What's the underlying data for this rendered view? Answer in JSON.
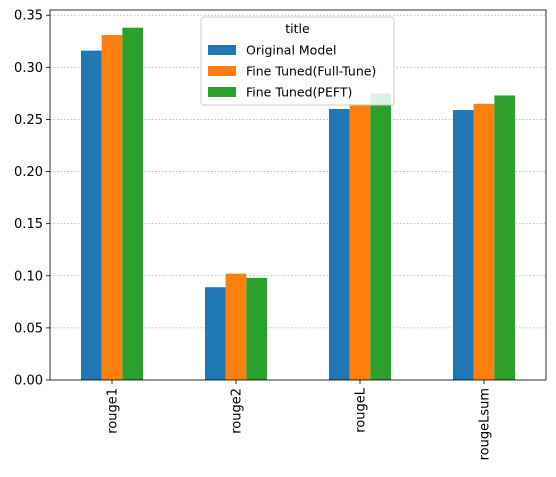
{
  "chart_data": {
    "type": "bar",
    "categories": [
      "rouge1",
      "rouge2",
      "rougeL",
      "rougeLsum"
    ],
    "series": [
      {
        "name": "Original Model",
        "color": "#1f77b4",
        "values": [
          0.316,
          0.089,
          0.26,
          0.259
        ]
      },
      {
        "name": "Fine Tuned(Full-Tune)",
        "color": "#ff7f0e",
        "values": [
          0.331,
          0.102,
          0.265,
          0.265
        ]
      },
      {
        "name": "Fine Tuned(PEFT)",
        "color": "#2ca02c",
        "values": [
          0.338,
          0.098,
          0.275,
          0.273
        ]
      }
    ],
    "ylim": [
      0,
      0.355
    ],
    "yticks": [
      0.0,
      0.05,
      0.1,
      0.15,
      0.2,
      0.25,
      0.3,
      0.35
    ],
    "ytick_labels": [
      "0.00",
      "0.05",
      "0.10",
      "0.15",
      "0.20",
      "0.25",
      "0.30",
      "0.35"
    ],
    "grid": "y, dotted",
    "legend": {
      "title": "title",
      "placement": "top-center"
    }
  }
}
